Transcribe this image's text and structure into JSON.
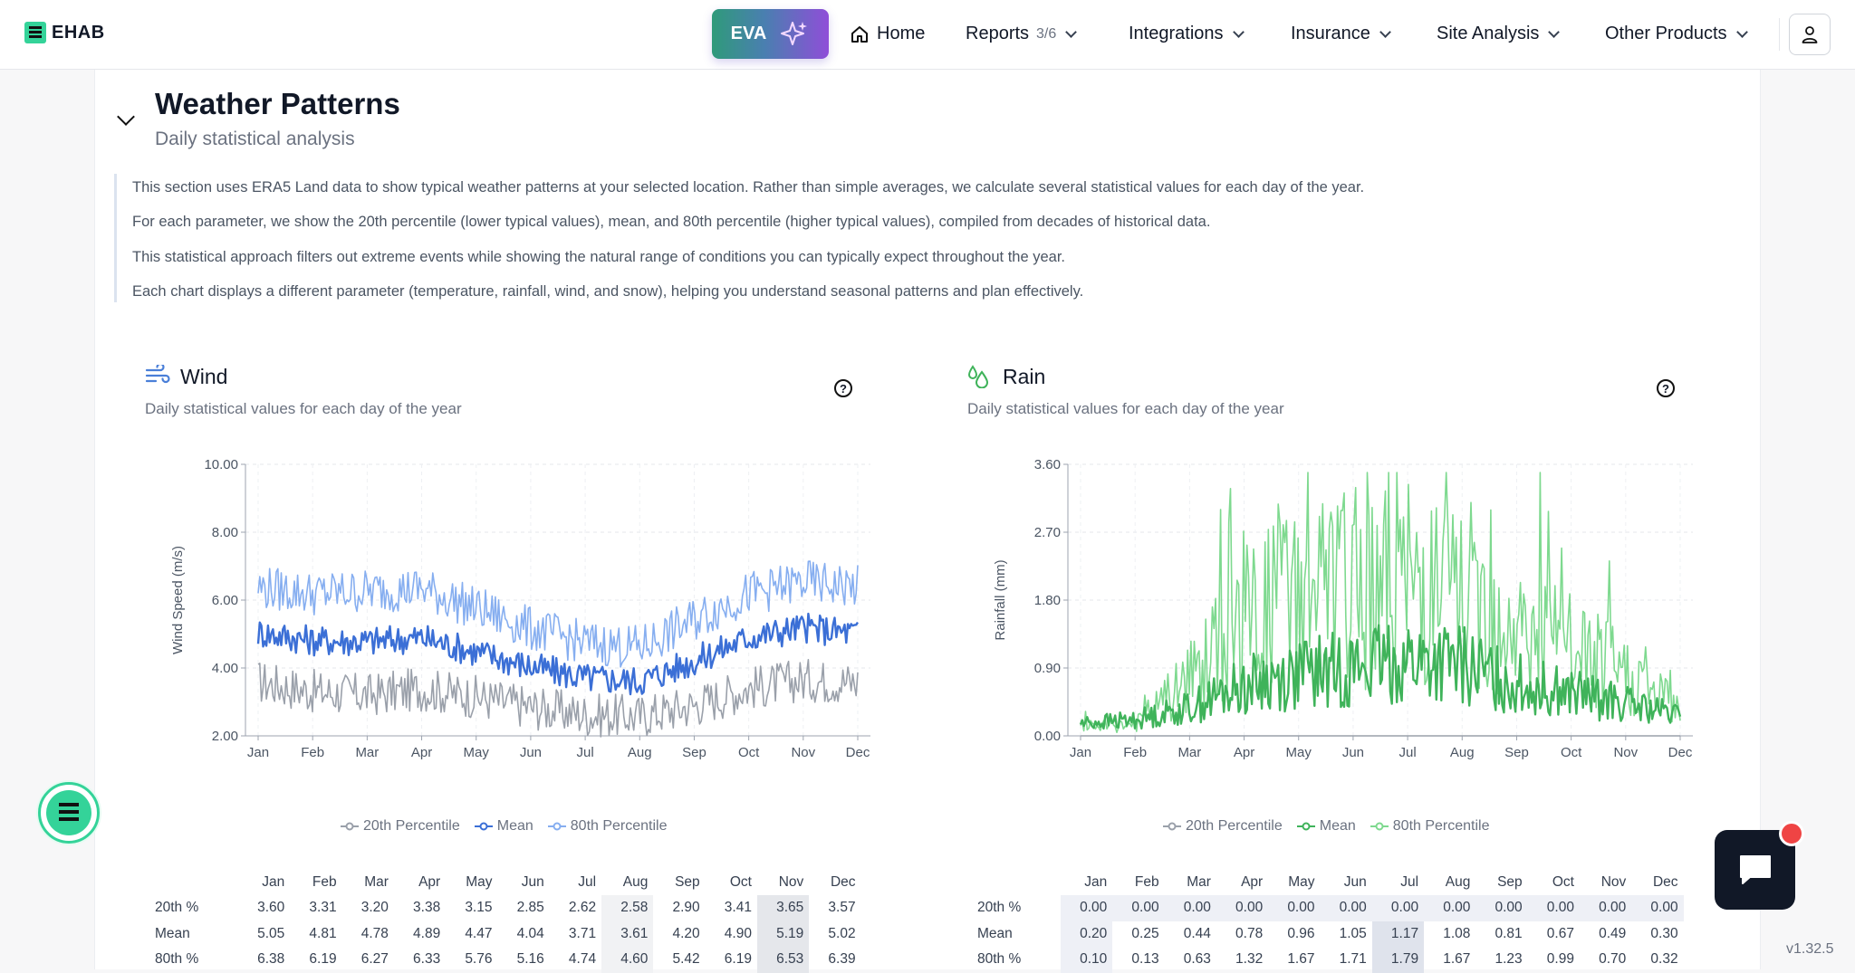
{
  "app": {
    "brand": "EHAB",
    "version": "v1.32.5"
  },
  "nav": {
    "eva_label": "EVA",
    "home": "Home",
    "reports": "Reports",
    "reports_count": "3/6",
    "integrations": "Integrations",
    "insurance": "Insurance",
    "site_analysis": "Site Analysis",
    "other_products": "Other Products"
  },
  "section": {
    "title": "Weather Patterns",
    "subtitle": "Daily statistical analysis",
    "description": [
      "This section uses ERA5 Land data to show typical weather patterns at your selected location. Rather than simple averages, we calculate several statistical values for each day of the year.",
      "For each parameter, we show the 20th percentile (lower typical values), mean, and 80th percentile (higher typical values), compiled from decades of historical data.",
      "This statistical approach filters out extreme events while showing the natural range of conditions you can typically expect throughout the year.",
      "Each chart displays a different parameter (temperature, rainfall, wind, and snow), helping you understand seasonal patterns and plan effectively."
    ]
  },
  "colors": {
    "wind_mean": "#3b6fd6",
    "wind_p80": "#86aef0",
    "wind_p20": "#9aa0aa",
    "rain_mean": "#3fb35a",
    "rain_p80": "#7ed98f",
    "rain_p20": "#9aa0aa",
    "brand_green": "#34d399"
  },
  "icons": {
    "wind": "wind-icon",
    "rain": "rain-drops-icon",
    "help": "help-circle-icon",
    "home": "home-icon",
    "user": "user-icon",
    "sparkle": "sparkle-icon",
    "chat": "chat-icon"
  },
  "wind": {
    "title": "Wind",
    "subtitle": "Daily statistical values for each day of the year",
    "legend": [
      "20th Percentile",
      "Mean",
      "80th Percentile"
    ],
    "table": {
      "row_labels": [
        "20th %",
        "Mean",
        "80th %"
      ],
      "rows": [
        [
          "3.60",
          "3.31",
          "3.20",
          "3.38",
          "3.15",
          "2.85",
          "2.62",
          "2.58",
          "2.90",
          "3.41",
          "3.65",
          "3.57"
        ],
        [
          "5.05",
          "4.81",
          "4.78",
          "4.89",
          "4.47",
          "4.04",
          "3.71",
          "3.61",
          "4.20",
          "4.90",
          "5.19",
          "5.02"
        ],
        [
          "6.38",
          "6.19",
          "6.27",
          "6.33",
          "5.76",
          "5.16",
          "4.74",
          "4.60",
          "5.42",
          "6.19",
          "6.53",
          "6.39"
        ]
      ]
    }
  },
  "rain": {
    "title": "Rain",
    "subtitle": "Daily statistical values for each day of the year",
    "legend": [
      "20th Percentile",
      "Mean",
      "80th Percentile"
    ],
    "table": {
      "row_labels": [
        "20th %",
        "Mean",
        "80th %"
      ],
      "rows": [
        [
          "0.00",
          "0.00",
          "0.00",
          "0.00",
          "0.00",
          "0.00",
          "0.00",
          "0.00",
          "0.00",
          "0.00",
          "0.00",
          "0.00"
        ],
        [
          "0.20",
          "0.25",
          "0.44",
          "0.78",
          "0.96",
          "1.05",
          "1.17",
          "1.08",
          "0.81",
          "0.67",
          "0.49",
          "0.30"
        ],
        [
          "0.10",
          "0.13",
          "0.63",
          "1.32",
          "1.67",
          "1.71",
          "1.79",
          "1.67",
          "1.23",
          "0.99",
          "0.70",
          "0.32"
        ]
      ]
    }
  },
  "chart_data": [
    {
      "type": "line",
      "ylabel": "Wind Speed (m/s)",
      "yticks": [
        "2.00",
        "4.00",
        "6.00",
        "8.00",
        "10.00"
      ],
      "ylim": [
        2,
        10
      ],
      "categories": [
        "Jan",
        "Feb",
        "Mar",
        "Apr",
        "May",
        "Jun",
        "Jul",
        "Aug",
        "Sep",
        "Oct",
        "Nov",
        "Dec"
      ],
      "grid": true,
      "legend_position": "bottom",
      "series": [
        {
          "name": "20th Percentile",
          "values": [
            3.6,
            3.31,
            3.2,
            3.38,
            3.15,
            2.85,
            2.62,
            2.58,
            2.9,
            3.41,
            3.65,
            3.57
          ]
        },
        {
          "name": "Mean",
          "values": [
            5.05,
            4.81,
            4.78,
            4.89,
            4.47,
            4.04,
            3.71,
            3.61,
            4.2,
            4.9,
            5.19,
            5.02
          ]
        },
        {
          "name": "80th Percentile",
          "values": [
            6.38,
            6.19,
            6.27,
            6.33,
            5.76,
            5.16,
            4.74,
            4.6,
            5.42,
            6.19,
            6.53,
            6.39
          ]
        }
      ]
    },
    {
      "type": "line",
      "ylabel": "Rainfall (mm)",
      "yticks": [
        "0.00",
        "0.90",
        "1.80",
        "2.70",
        "3.60"
      ],
      "ylim": [
        0,
        3.6
      ],
      "categories": [
        "Jan",
        "Feb",
        "Mar",
        "Apr",
        "May",
        "Jun",
        "Jul",
        "Aug",
        "Sep",
        "Oct",
        "Nov",
        "Dec"
      ],
      "grid": true,
      "legend_position": "bottom",
      "series": [
        {
          "name": "20th Percentile",
          "values": [
            0.0,
            0.0,
            0.0,
            0.0,
            0.0,
            0.0,
            0.0,
            0.0,
            0.0,
            0.0,
            0.0,
            0.0
          ]
        },
        {
          "name": "Mean",
          "values": [
            0.2,
            0.25,
            0.44,
            0.78,
            0.96,
            1.05,
            1.17,
            1.08,
            0.81,
            0.67,
            0.49,
            0.3
          ]
        },
        {
          "name": "80th Percentile",
          "values": [
            0.1,
            0.13,
            0.63,
            1.32,
            1.67,
            1.71,
            1.79,
            1.67,
            1.23,
            0.99,
            0.7,
            0.32
          ]
        }
      ]
    }
  ]
}
